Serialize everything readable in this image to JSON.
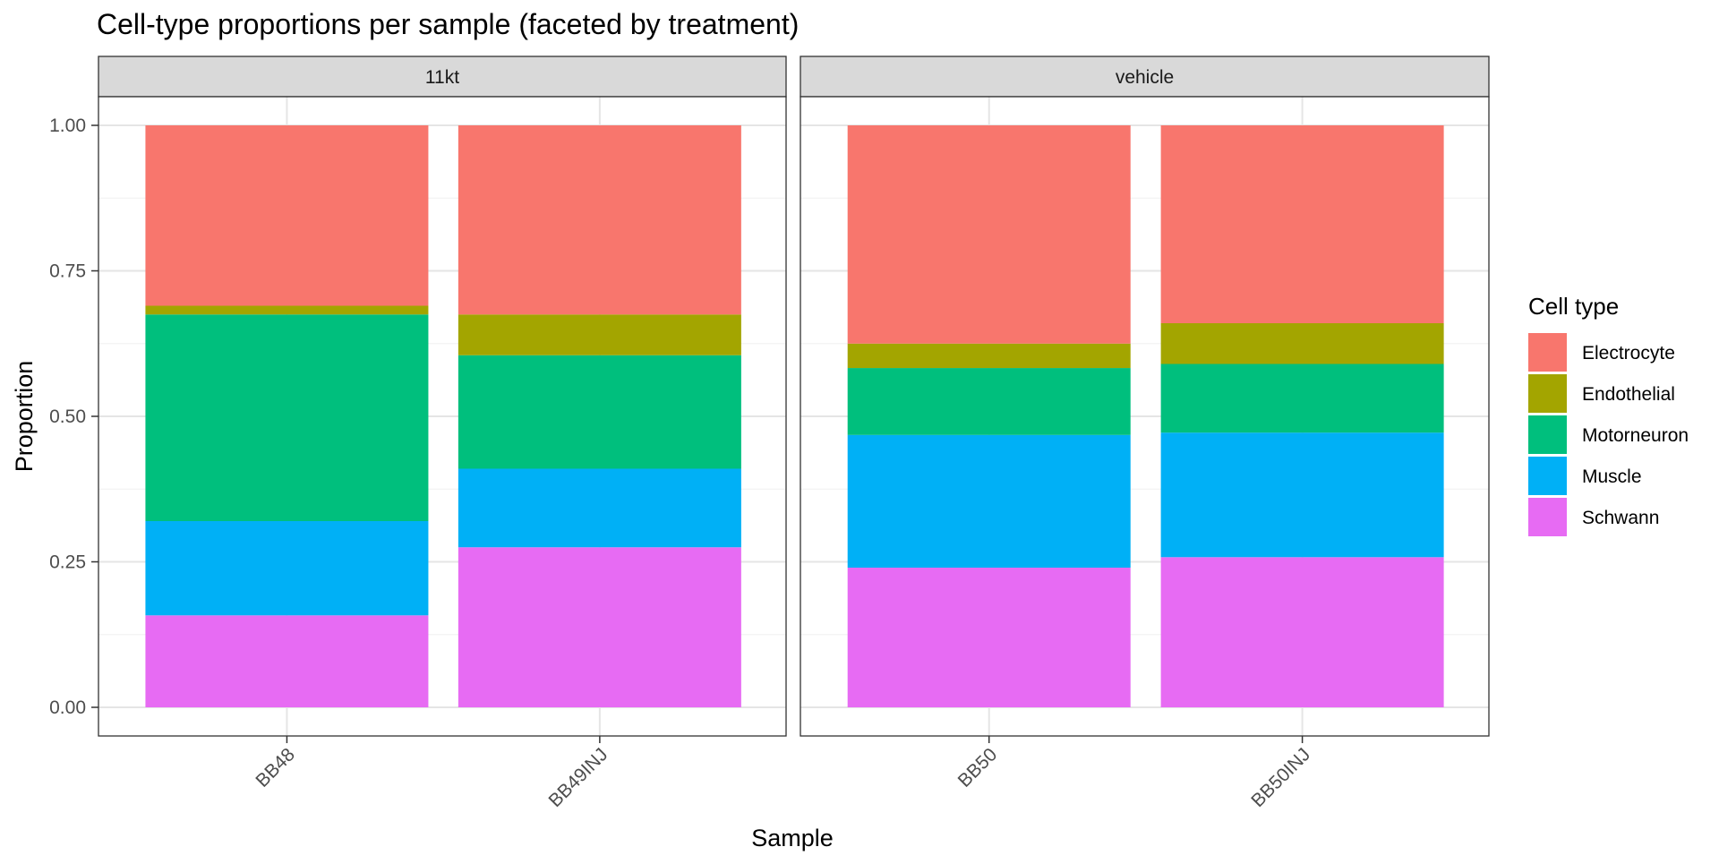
{
  "chart_data": {
    "type": "bar",
    "stacked": true,
    "title": "Cell-type proportions per sample (faceted by treatment)",
    "xlabel": "Sample",
    "ylabel": "Proportion",
    "ylim": [
      0,
      1
    ],
    "y_ticks": [
      "0.00",
      "0.25",
      "0.50",
      "0.75",
      "1.00"
    ],
    "grid": true,
    "legend": {
      "title": "Cell type",
      "position": "right",
      "items": [
        {
          "name": "Electrocyte",
          "color": "#F8766D"
        },
        {
          "name": "Endothelial",
          "color": "#A3A500"
        },
        {
          "name": "Motorneuron",
          "color": "#00BF7D"
        },
        {
          "name": "Muscle",
          "color": "#00B0F6"
        },
        {
          "name": "Schwann",
          "color": "#E76BF3"
        }
      ]
    },
    "stack_order_bottom_to_top": [
      "Schwann",
      "Muscle",
      "Motorneuron",
      "Endothelial",
      "Electrocyte"
    ],
    "facets": [
      {
        "label": "11kt",
        "categories": [
          "BB48",
          "BB49INJ"
        ],
        "series": [
          {
            "name": "Electrocyte",
            "values": [
              0.31,
              0.325
            ]
          },
          {
            "name": "Endothelial",
            "values": [
              0.015,
              0.07
            ]
          },
          {
            "name": "Motorneuron",
            "values": [
              0.355,
              0.195
            ]
          },
          {
            "name": "Muscle",
            "values": [
              0.162,
              0.135
            ]
          },
          {
            "name": "Schwann",
            "values": [
              0.158,
              0.275
            ]
          }
        ]
      },
      {
        "label": "vehicle",
        "categories": [
          "BB50",
          "BB50INJ"
        ],
        "series": [
          {
            "name": "Electrocyte",
            "values": [
              0.375,
              0.34
            ]
          },
          {
            "name": "Endothelial",
            "values": [
              0.042,
              0.07
            ]
          },
          {
            "name": "Motorneuron",
            "values": [
              0.115,
              0.118
            ]
          },
          {
            "name": "Muscle",
            "values": [
              0.228,
              0.214
            ]
          },
          {
            "name": "Schwann",
            "values": [
              0.24,
              0.258
            ]
          }
        ]
      }
    ]
  }
}
